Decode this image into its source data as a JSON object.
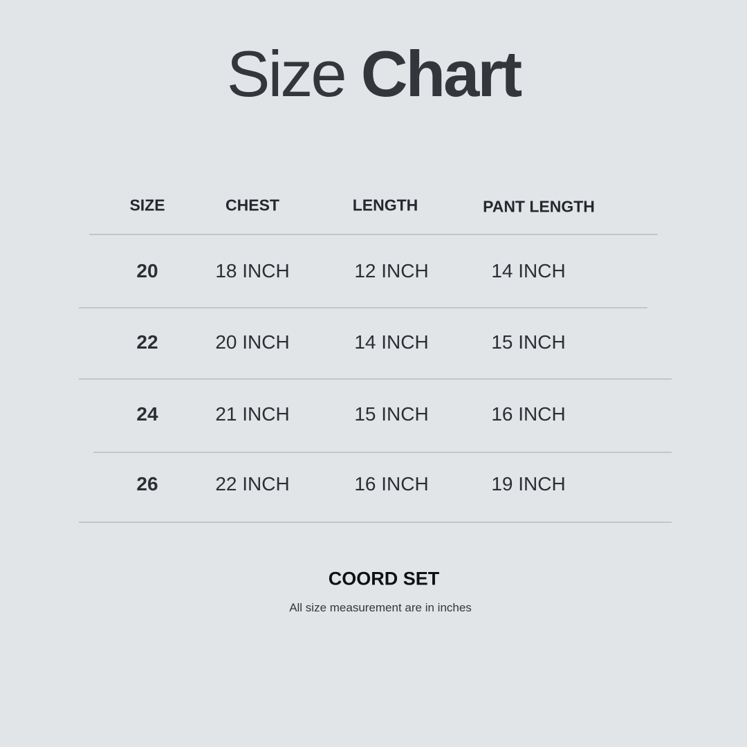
{
  "title": {
    "light": "Size",
    "bold": "Chart"
  },
  "table": {
    "headers": [
      "SIZE",
      "CHEST",
      "LENGTH",
      "PANT LENGTH"
    ],
    "rows": [
      [
        "20",
        "18 INCH",
        "12 INCH",
        "14 INCH"
      ],
      [
        "22",
        "20 INCH",
        "14 INCH",
        "15 INCH"
      ],
      [
        "24",
        "21 INCH",
        "15 INCH",
        "16 INCH"
      ],
      [
        "26",
        "22 INCH",
        "16 INCH",
        "19 INCH"
      ]
    ]
  },
  "footer": {
    "product": "COORD SET",
    "note": "All size measurement are in inches"
  },
  "colors": {
    "background": "#e1e5e8",
    "text": "#2b2f33",
    "divider": "#c2c6c9"
  }
}
